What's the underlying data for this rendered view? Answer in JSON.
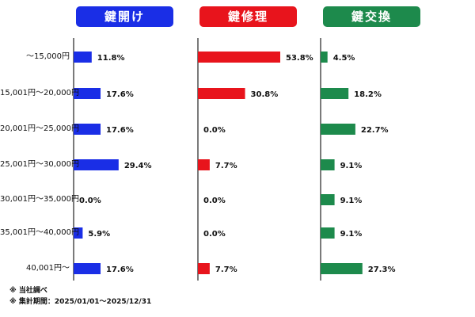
{
  "chart_data": [
    {
      "type": "bar",
      "title": "鍵開け",
      "categories": [
        "～15,000円",
        "15,001円～20,000円",
        "20,001円～25,000円",
        "25,001円～30,000円",
        "30,001円～35,000円",
        "35,001円～40,000円",
        "40,001円～"
      ],
      "values": [
        11.8,
        17.6,
        17.6,
        29.4,
        0.0,
        5.9,
        17.6
      ],
      "value_labels": [
        "11.8%",
        "17.6%",
        "17.6%",
        "29.4%",
        "0.0%",
        "5.9%",
        "17.6%"
      ],
      "color": "#1a2ee6",
      "xlim": [
        0,
        60
      ]
    },
    {
      "type": "bar",
      "title": "鍵修理",
      "categories": [
        "～15,000円",
        "15,001円～20,000円",
        "20,001円～25,000円",
        "25,001円～30,000円",
        "30,001円～35,000円",
        "35,001円～40,000円",
        "40,001円～"
      ],
      "values": [
        53.8,
        30.8,
        0.0,
        7.7,
        0.0,
        0.0,
        7.7
      ],
      "value_labels": [
        "53.8%",
        "30.8%",
        "0.0%",
        "7.7%",
        "0.0%",
        "0.0%",
        "7.7%"
      ],
      "color": "#e8141c",
      "xlim": [
        0,
        60
      ]
    },
    {
      "type": "bar",
      "title": "鍵交換",
      "categories": [
        "～15,000円",
        "15,001円～20,000円",
        "20,001円～25,000円",
        "25,001円～30,000円",
        "30,001円～35,000円",
        "35,001円～40,000円",
        "40,001円～"
      ],
      "values": [
        4.5,
        18.2,
        22.7,
        9.1,
        9.1,
        9.1,
        27.3
      ],
      "value_labels": [
        "4.5%",
        "18.2%",
        "22.7%",
        "9.1%",
        "9.1%",
        "9.1%",
        "27.3%"
      ],
      "color": "#1d8a4c",
      "xlim": [
        0,
        60
      ]
    }
  ],
  "notes": [
    "※ 当社調べ",
    "※ 集計期間：2025/01/01～2025/12/31"
  ]
}
